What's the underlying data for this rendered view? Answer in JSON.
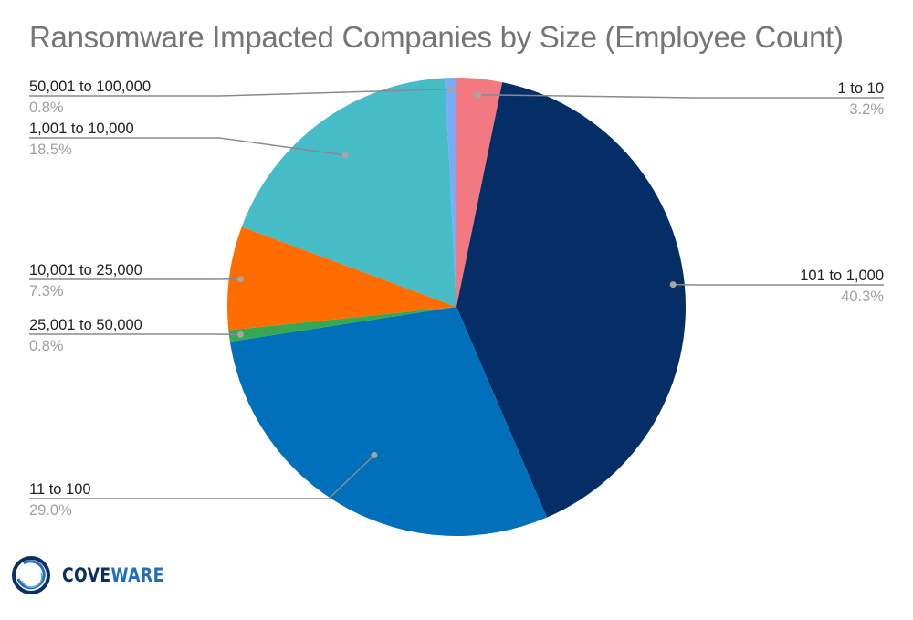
{
  "chart_data": {
    "type": "pie",
    "title": "Ransomware Impacted Companies by Size (Employee Count)",
    "start_angle": "12 o'clock",
    "direction": "clockwise",
    "slices": [
      {
        "label": "1 to 10",
        "value": 3.2,
        "value_label": "3.2%",
        "color": "#f27881",
        "label_side": "right"
      },
      {
        "label": "101 to 1,000",
        "value": 40.3,
        "value_label": "40.3%",
        "color": "#052d66",
        "label_side": "right"
      },
      {
        "label": "11 to 100",
        "value": 29.0,
        "value_label": "29.0%",
        "color": "#0070bb",
        "label_side": "left"
      },
      {
        "label": "25,001 to 50,000",
        "value": 0.8,
        "value_label": "0.8%",
        "color": "#34a853",
        "label_side": "left"
      },
      {
        "label": "10,001 to 25,000",
        "value": 7.3,
        "value_label": "7.3%",
        "color": "#ff6d01",
        "label_side": "left"
      },
      {
        "label": "1,001 to 10,000",
        "value": 18.5,
        "value_label": "18.5%",
        "color": "#46bdc6",
        "label_side": "left"
      },
      {
        "label": "50,001 to 100,000",
        "value": 0.8,
        "value_label": "0.8%",
        "color": "#7baaf7",
        "label_side": "left"
      }
    ],
    "legend": "none (leader-line labels)"
  },
  "logo": {
    "part1": "COVE",
    "part2": "WARE",
    "icon": "coveware-ring-logo-icon",
    "colors": {
      "dark": "#0b2f63",
      "light": "#1f6fc0"
    }
  }
}
